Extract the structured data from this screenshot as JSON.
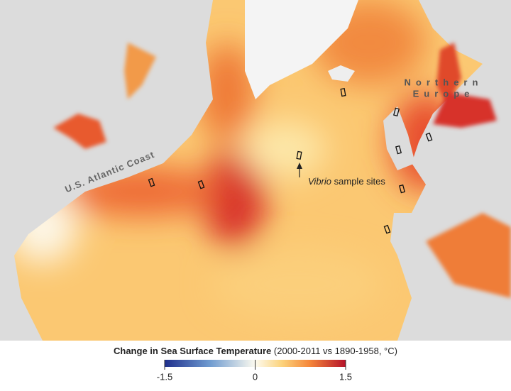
{
  "map": {
    "labels": {
      "us_coast": "U.S. Atlantic Coast",
      "europe_line1": "Northern",
      "europe_line2": "Europe"
    },
    "annotation": {
      "italic": "Vibrio",
      "text": "sample sites"
    }
  },
  "legend": {
    "title": "Change in Sea Surface Temperature",
    "subtitle": "(2000-2011 vs 1890-1958, °C)",
    "range": [
      -1.5,
      1.5
    ],
    "ticks": [
      -1.5,
      0,
      1.5
    ]
  }
}
